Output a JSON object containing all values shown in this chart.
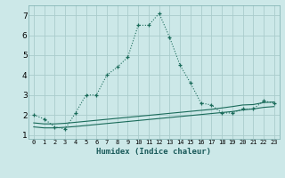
{
  "xlabel": "Humidex (Indice chaleur)",
  "bg_color": "#cce8e8",
  "grid_color": "#aacccc",
  "line_color": "#1a6b5a",
  "xlim": [
    -0.5,
    23.5
  ],
  "ylim": [
    0.8,
    7.5
  ],
  "xticks": [
    0,
    1,
    2,
    3,
    4,
    5,
    6,
    7,
    8,
    9,
    10,
    11,
    12,
    13,
    14,
    15,
    16,
    17,
    18,
    19,
    20,
    21,
    22,
    23
  ],
  "yticks": [
    1,
    2,
    3,
    4,
    5,
    6,
    7
  ],
  "line1_x": [
    0,
    1,
    2,
    3,
    4,
    5,
    6,
    7,
    8,
    9,
    10,
    11,
    12,
    13,
    14,
    15,
    16,
    17,
    18,
    19,
    20,
    21,
    22,
    23
  ],
  "line1_y": [
    2.0,
    1.8,
    1.4,
    1.3,
    2.1,
    3.0,
    3.0,
    4.0,
    4.4,
    4.9,
    6.5,
    6.5,
    7.1,
    5.9,
    4.5,
    3.6,
    2.6,
    2.5,
    2.1,
    2.1,
    2.3,
    2.3,
    2.7,
    2.6
  ],
  "line2_x": [
    0,
    1,
    2,
    3,
    4,
    5,
    6,
    7,
    8,
    9,
    10,
    11,
    12,
    13,
    14,
    15,
    16,
    17,
    18,
    19,
    20,
    21,
    22,
    23
  ],
  "line2_y": [
    1.4,
    1.35,
    1.35,
    1.38,
    1.42,
    1.47,
    1.52,
    1.57,
    1.62,
    1.67,
    1.72,
    1.77,
    1.82,
    1.87,
    1.92,
    1.97,
    2.02,
    2.07,
    2.12,
    2.17,
    2.25,
    2.3,
    2.38,
    2.42
  ],
  "line3_x": [
    0,
    1,
    2,
    3,
    4,
    5,
    6,
    7,
    8,
    9,
    10,
    11,
    12,
    13,
    14,
    15,
    16,
    17,
    18,
    19,
    20,
    21,
    22,
    23
  ],
  "line3_y": [
    1.6,
    1.55,
    1.55,
    1.58,
    1.63,
    1.68,
    1.73,
    1.78,
    1.83,
    1.88,
    1.93,
    1.98,
    2.03,
    2.08,
    2.13,
    2.18,
    2.23,
    2.28,
    2.35,
    2.42,
    2.5,
    2.52,
    2.62,
    2.65
  ]
}
